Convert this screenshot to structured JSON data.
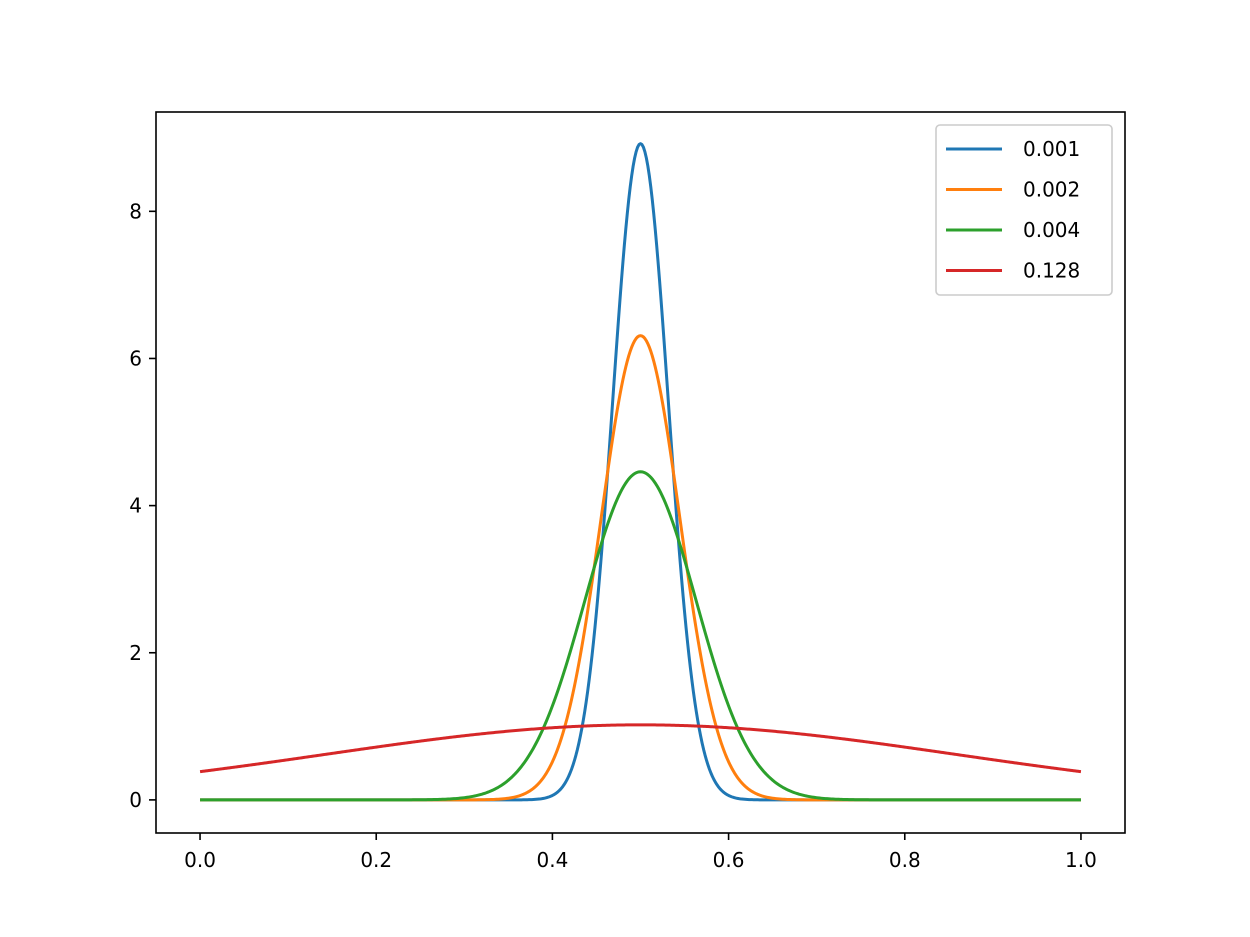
{
  "chart_data": {
    "type": "line",
    "title": "",
    "xlabel": "",
    "ylabel": "",
    "xlim": [
      -0.05,
      1.05
    ],
    "ylim": [
      -0.45,
      9.35
    ],
    "xticks": [
      "0.0",
      "0.2",
      "0.4",
      "0.6",
      "0.8",
      "1.0"
    ],
    "yticks": [
      "0",
      "2",
      "4",
      "6",
      "8"
    ],
    "grid": false,
    "legend": "top-right",
    "x_range": [
      0,
      1
    ],
    "center": 0.5,
    "series": [
      {
        "name": "0.001",
        "variance": 0.001,
        "peak": 8.92,
        "color": "#1f77b4"
      },
      {
        "name": "0.002",
        "variance": 0.002,
        "peak": 6.31,
        "color": "#ff7f0e"
      },
      {
        "name": "0.004",
        "variance": 0.004,
        "peak": 4.46,
        "color": "#2ca02c"
      },
      {
        "name": "0.128",
        "variance": 0.128,
        "peak": 1.02,
        "color": "#d62728"
      }
    ]
  }
}
